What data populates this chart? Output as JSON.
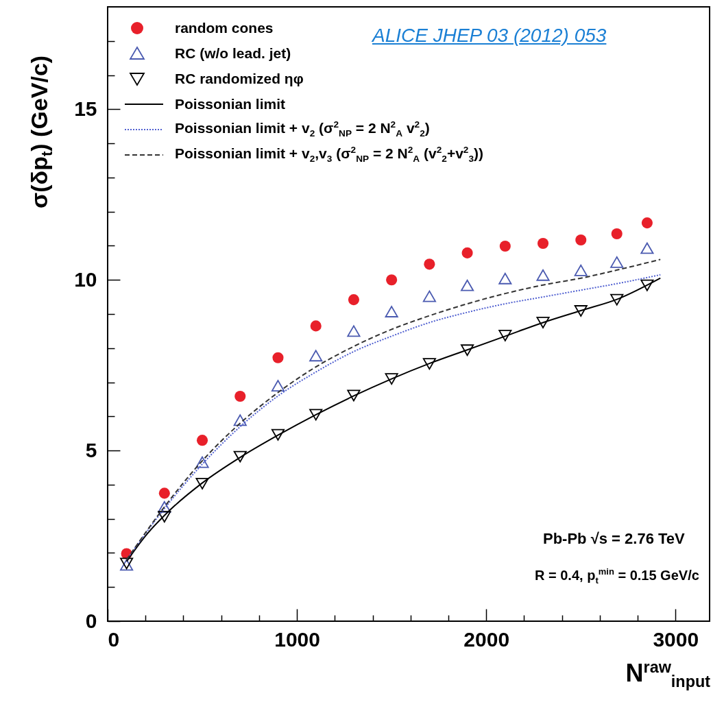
{
  "chart_data": {
    "type": "scatter",
    "xlabel": "N$^{raw}$$_{input}$",
    "ylabel": "σ(δp$_{t}$) (GeV/c)",
    "xlim": [
      0,
      3180
    ],
    "ylim": [
      0,
      18
    ],
    "xticks": [
      0,
      {
        "value": 200,
        "label": null
      },
      {
        "value": 400,
        "label": null
      },
      {
        "value": 600,
        "label": null
      },
      {
        "value": 800,
        "label": null
      },
      1000,
      {
        "value": 1200,
        "label": null
      },
      {
        "value": 1400,
        "label": null
      },
      {
        "value": 1600,
        "label": null
      },
      {
        "value": 1800,
        "label": null
      },
      2000,
      {
        "value": 2200,
        "label": null
      },
      {
        "value": 2400,
        "label": null
      },
      {
        "value": 2600,
        "label": null
      },
      {
        "value": 2800,
        "label": null
      },
      3000
    ],
    "yticks": [
      0,
      {
        "value": 1,
        "label": null
      },
      {
        "value": 2,
        "label": null
      },
      {
        "value": 3,
        "label": null
      },
      {
        "value": 4,
        "label": null
      },
      5,
      {
        "value": 6,
        "label": null
      },
      {
        "value": 7,
        "label": null
      },
      {
        "value": 8,
        "label": null
      },
      {
        "value": 9,
        "label": null
      },
      10,
      {
        "value": 11,
        "label": null
      },
      {
        "value": 12,
        "label": null
      },
      {
        "value": 13,
        "label": null
      },
      {
        "value": 14,
        "label": null
      },
      15,
      {
        "value": 16,
        "label": null
      },
      {
        "value": 17,
        "label": null
      }
    ],
    "grid": false,
    "legend": "top left",
    "annotations": [
      "ALICE JHEP 03 (2012) 053",
      "Pb-Pb √s = 2.76 TeV",
      "R = 0.4, p$_{t}$$^{min}$ = 0.15 GeV/c"
    ],
    "series": [
      {
        "name": "random cones",
        "type": "scatter",
        "marker": "circle",
        "color": "#e8202a",
        "x": [
          100,
          300,
          500,
          700,
          900,
          1100,
          1300,
          1500,
          1700,
          1900,
          2100,
          2300,
          2500,
          2690,
          2850
        ],
        "values": [
          1.98,
          3.75,
          5.3,
          6.59,
          7.72,
          8.65,
          9.42,
          10.0,
          10.46,
          10.79,
          10.99,
          11.07,
          11.17,
          11.35,
          11.67
        ]
      },
      {
        "name": "RC (w/o lead. jet)",
        "type": "scatter",
        "marker": "triangle",
        "color": "#4a5ab0",
        "x": [
          100,
          300,
          500,
          700,
          900,
          1100,
          1300,
          1500,
          1700,
          1900,
          2100,
          2300,
          2500,
          2690,
          2850
        ],
        "values": [
          1.65,
          3.35,
          4.66,
          5.89,
          6.9,
          7.78,
          8.5,
          9.07,
          9.52,
          9.84,
          10.04,
          10.14,
          10.28,
          10.52,
          10.93
        ]
      },
      {
        "name": "RC randomized ηφ",
        "type": "scatter",
        "marker": "triangle-down",
        "color": "#000000",
        "x": [
          100,
          300,
          500,
          700,
          900,
          1100,
          1300,
          1500,
          1700,
          1900,
          2100,
          2300,
          2500,
          2690,
          2850
        ],
        "values": [
          1.69,
          3.06,
          4.03,
          4.82,
          5.46,
          6.05,
          6.61,
          7.1,
          7.54,
          7.94,
          8.37,
          8.75,
          9.09,
          9.42,
          9.84
        ]
      },
      {
        "name": "Poissonian limit",
        "type": "line",
        "line_style": "solid",
        "color": "#000000",
        "x": [
          100,
          200,
          300,
          500,
          700,
          900,
          1100,
          1300,
          1500,
          1700,
          1900,
          2100,
          2300,
          2500,
          2700,
          2920
        ],
        "values": [
          1.75,
          2.5,
          3.1,
          4.05,
          4.8,
          5.45,
          6.05,
          6.6,
          7.1,
          7.55,
          7.95,
          8.35,
          8.75,
          9.1,
          9.45,
          10.05
        ]
      },
      {
        "name": "Poissonian limit + v$_{2}$ (σ$^{2}$$_{NP}$ = 2 N$^{2}$$_{A}$ v$^{2}$$_{2}$)",
        "type": "line",
        "line_style": "dotted",
        "color": "#4f5fd0",
        "x": [
          100,
          300,
          500,
          700,
          900,
          1100,
          1300,
          1500,
          1700,
          1900,
          2100,
          2300,
          2500,
          2700,
          2920
        ],
        "values": [
          1.8,
          3.3,
          4.6,
          5.7,
          6.6,
          7.3,
          7.9,
          8.35,
          8.75,
          9.05,
          9.3,
          9.5,
          9.7,
          9.9,
          10.15
        ]
      },
      {
        "name": "Poissonian limit + v$_{2}$,v$_{3}$ (σ$^{2}$$_{NP}$ = 2 N$^{2}$$_{A}$ (v$^{2}$$_{2}$+v$^{2}$$_{3}$))",
        "type": "line",
        "line_style": "dashed",
        "color": "#333333",
        "x": [
          100,
          300,
          500,
          700,
          900,
          1100,
          1300,
          1500,
          1700,
          1900,
          2100,
          2300,
          2500,
          2700,
          2920
        ],
        "values": [
          1.8,
          3.35,
          4.7,
          5.8,
          6.7,
          7.45,
          8.05,
          8.55,
          8.95,
          9.3,
          9.6,
          9.85,
          10.05,
          10.3,
          10.6
        ]
      }
    ]
  }
}
